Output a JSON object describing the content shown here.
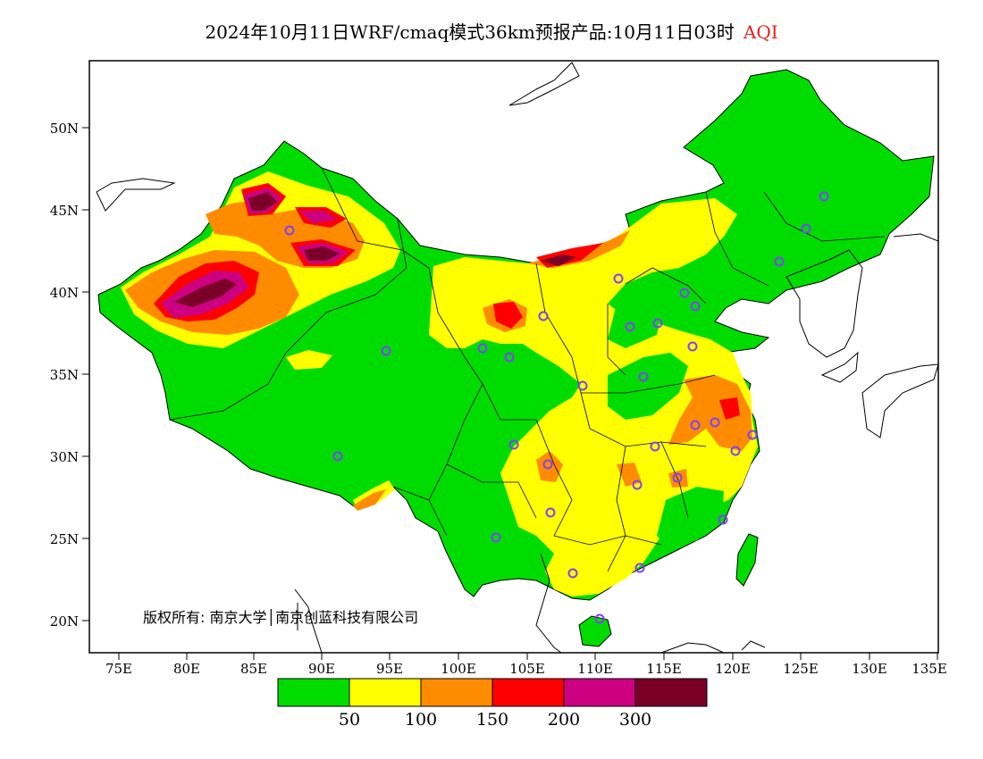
{
  "title": {
    "main": "2024年10月11日WRF/cmaq模式36km预报产品:10月11日03时",
    "variable": "AQI",
    "variable_color": "#e8201c"
  },
  "lat_ticks": [
    "50N",
    "45N",
    "40N",
    "35N",
    "30N",
    "25N",
    "20N"
  ],
  "lon_ticks": [
    "75E",
    "80E",
    "85E",
    "90E",
    "95E",
    "100E",
    "105E",
    "110E",
    "115E",
    "120E",
    "125E",
    "130E",
    "135E"
  ],
  "copyright": "版权所有: 南京大学│南京创蓝科技有限公司",
  "legend": {
    "colors": [
      "#00dc00",
      "#ffff00",
      "#ff8c00",
      "#ff0000",
      "#cc0080",
      "#7a0028"
    ],
    "labels": [
      "50",
      "100",
      "150",
      "200",
      "300"
    ]
  },
  "colors": {
    "ocean": "#ffffff",
    "border": "#000000",
    "city_marker": "#8040ff"
  }
}
